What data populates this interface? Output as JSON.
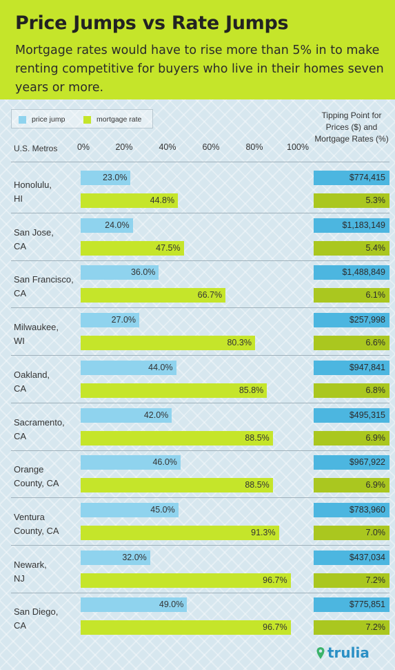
{
  "header": {
    "title": "Price Jumps vs Rate Jumps",
    "subtitle": "Mortgage rates would have to rise more than 5% in to make renting competitive for buyers who live in their homes seven years or more."
  },
  "legend": {
    "price": "price jump",
    "rate": "mortgage rate"
  },
  "columns": {
    "metros": "U.S. Metros",
    "tipping_point": "Tipping Point for Prices ($) and Mortgage Rates (%)"
  },
  "colors": {
    "price_bar": "#8fd3ee",
    "rate_bar": "#c5e52a",
    "price_box": "#4cb6e0",
    "rate_box": "#aac71f",
    "header": "#c5e52a"
  },
  "brand": {
    "logo": "trulia"
  },
  "chart_data": {
    "type": "bar",
    "orientation": "horizontal",
    "xlim": [
      0,
      100
    ],
    "ticks": [
      "0%",
      "20%",
      "40%",
      "60%",
      "80%",
      "100%"
    ],
    "categories": [
      "Honolulu, HI",
      "San Jose, CA",
      "San Francisco, CA",
      "Milwaukee, WI",
      "Oakland, CA",
      "Sacramento, CA",
      "Orange County, CA",
      "Ventura County, CA",
      "Newark, NJ",
      "San Diego, CA"
    ],
    "category_lines": [
      [
        "Honolulu,",
        "HI"
      ],
      [
        "San Jose,",
        "CA"
      ],
      [
        "San Francisco,",
        "CA"
      ],
      [
        "Milwaukee,",
        "WI"
      ],
      [
        "Oakland,",
        "CA"
      ],
      [
        "Sacramento,",
        "CA"
      ],
      [
        "Orange",
        "County, CA"
      ],
      [
        "Ventura",
        "County, CA"
      ],
      [
        "Newark,",
        "NJ"
      ],
      [
        "San Diego,",
        "CA"
      ]
    ],
    "series": [
      {
        "name": "price jump",
        "values": [
          23.0,
          24.0,
          36.0,
          27.0,
          44.0,
          42.0,
          46.0,
          45.0,
          32.0,
          49.0
        ],
        "labels": [
          "23.0%",
          "24.0%",
          "36.0%",
          "27.0%",
          "44.0%",
          "42.0%",
          "46.0%",
          "45.0%",
          "32.0%",
          "49.0%"
        ]
      },
      {
        "name": "mortgage rate",
        "values": [
          44.8,
          47.5,
          66.7,
          80.3,
          85.8,
          88.5,
          88.5,
          91.3,
          96.7,
          96.7
        ],
        "labels": [
          "44.8%",
          "47.5%",
          "66.7%",
          "80.3%",
          "85.8%",
          "88.5%",
          "88.5%",
          "91.3%",
          "96.7%",
          "96.7%"
        ]
      }
    ],
    "tipping_prices": [
      "$774,415",
      "$1,183,149",
      "$1,488,849",
      "$257,998",
      "$947,841",
      "$495,315",
      "$967,922",
      "$783,960",
      "$437,034",
      "$775,851"
    ],
    "tipping_rates": [
      "5.3%",
      "5.4%",
      "6.1%",
      "6.6%",
      "6.8%",
      "6.9%",
      "6.9%",
      "7.0%",
      "7.2%",
      "7.2%"
    ]
  }
}
